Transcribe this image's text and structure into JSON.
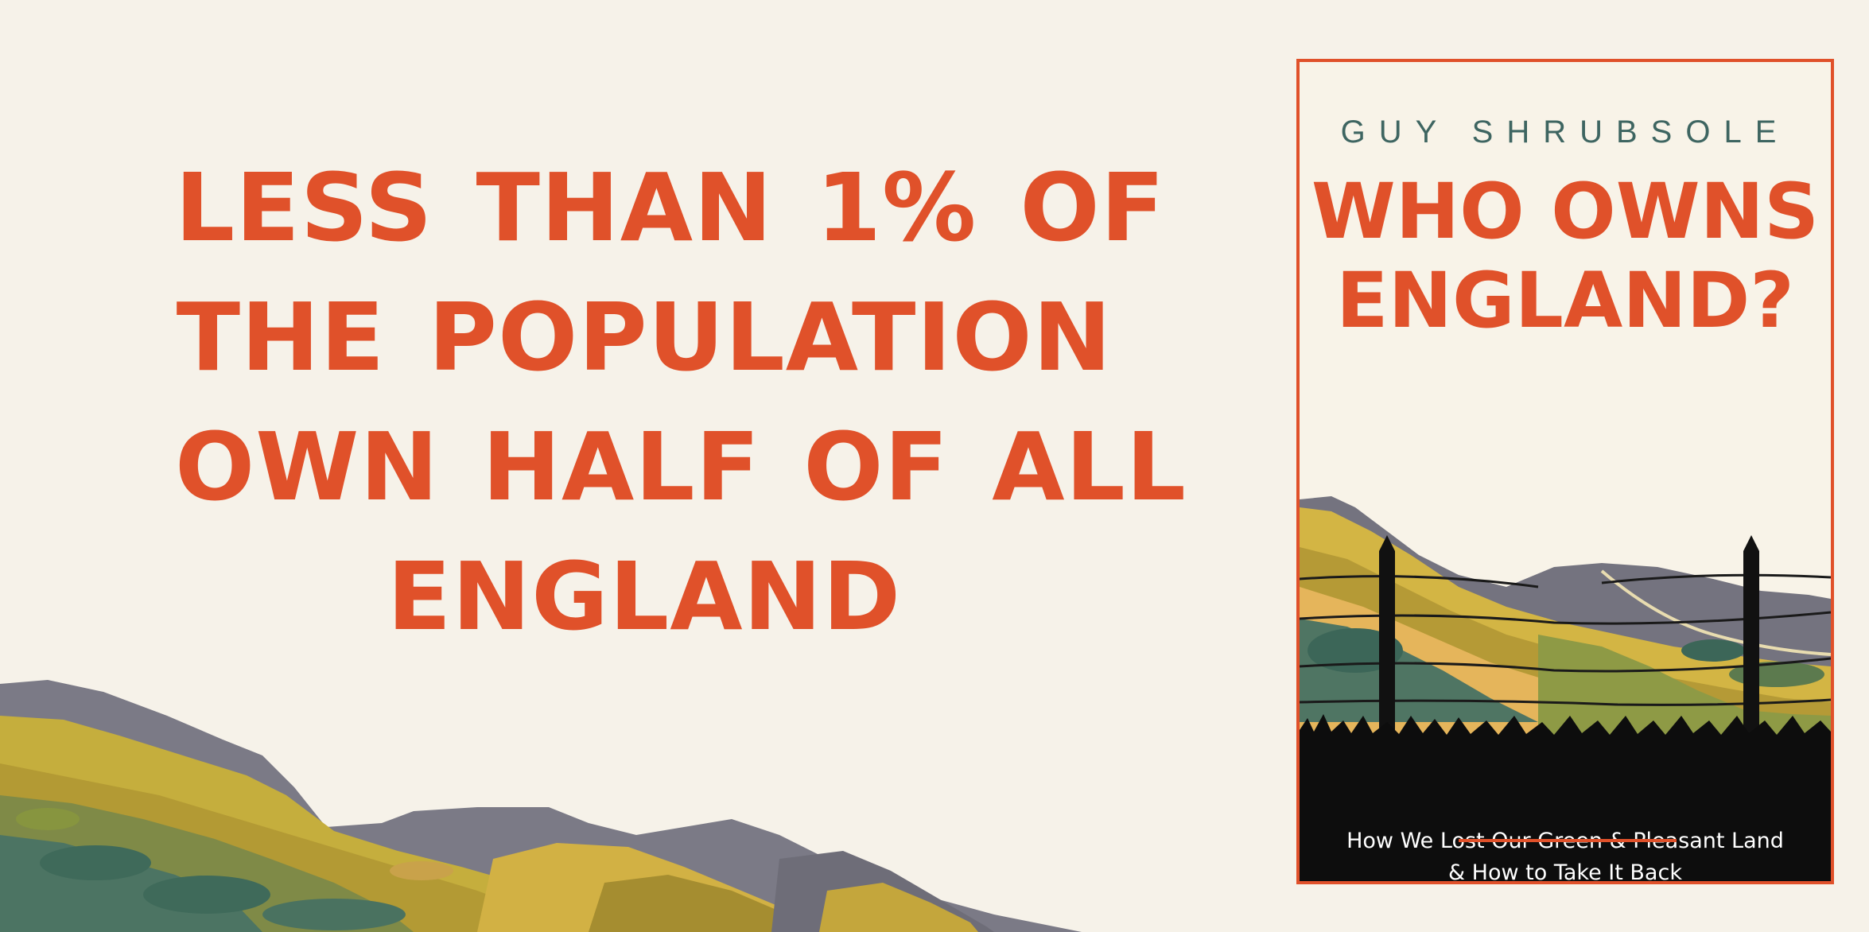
{
  "headline": {
    "lines": [
      "LESS THAN 1% OF",
      "THE POPULATION",
      "OWN HALF OF ALL",
      "ENGLAND"
    ]
  },
  "book": {
    "author": "GUY SHRUBSOLE",
    "title_lines": [
      "WHO OWNS",
      "ENGLAND?"
    ],
    "subtitle_lines": [
      "How We Lost Our Green & Pleasant Land",
      "& How to Take It Back"
    ]
  },
  "colors": {
    "accent": "#e0512a",
    "background": "#f6f2e9",
    "author": "#3e6561",
    "band": "#0d0d0d"
  }
}
